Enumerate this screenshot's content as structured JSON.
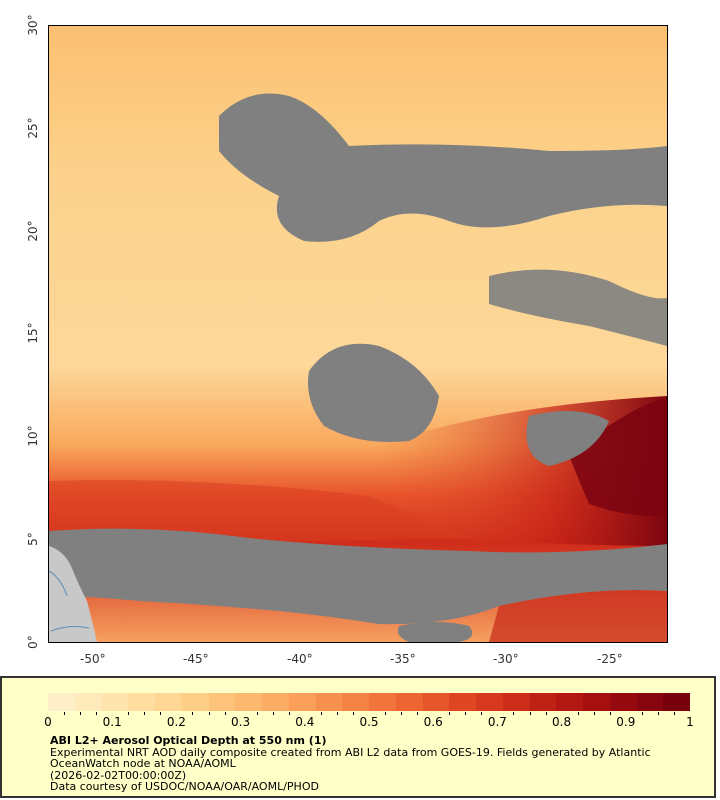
{
  "map": {
    "lat_labels": [
      "30°",
      "25°",
      "20°",
      "15°",
      "10°",
      "5°",
      "0°"
    ],
    "lon_labels": [
      "-50°",
      "-45°",
      "-40°",
      "-35°",
      "-30°",
      "-25°"
    ],
    "extent": {
      "lon_min": -52.2,
      "lon_max": -22.2,
      "lat_min": 0,
      "lat_max": 30
    },
    "colors": {
      "no_data": "#808080",
      "land": "#c8c8c8",
      "background_low": "#fcd88e"
    }
  },
  "legend": {
    "tick_labels": [
      "0",
      "0.1",
      "0.2",
      "0.3",
      "0.4",
      "0.5",
      "0.6",
      "0.7",
      "0.8",
      "0.9",
      "1"
    ],
    "colorbar_colors": [
      "#ffefc8",
      "#ffeabb",
      "#ffe4ad",
      "#ffdda0",
      "#ffd693",
      "#fecd86",
      "#fec37a",
      "#fdb86f",
      "#fcac64",
      "#fb9f5a",
      "#f89150",
      "#f58346",
      "#f1743c",
      "#ec6533",
      "#e6562b",
      "#df4724",
      "#d6391e",
      "#cc2c19",
      "#c02115",
      "#b31712",
      "#a50f10",
      "#96090f",
      "#86050e",
      "#78000d"
    ],
    "title": "ABI L2+ Aerosol Optical Depth at 550 nm (1)",
    "line1": "Experimental NRT AOD daily composite created from ABI L2 data from GOES-19. Fields generated by Atlantic",
    "line2": "OceanWatch node at NOAA/AOML",
    "line3": "(2026-02-02T00:00:00Z)",
    "line4": "Data courtesy of USDOC/NOAA/OAR/AOML/PHOD"
  }
}
